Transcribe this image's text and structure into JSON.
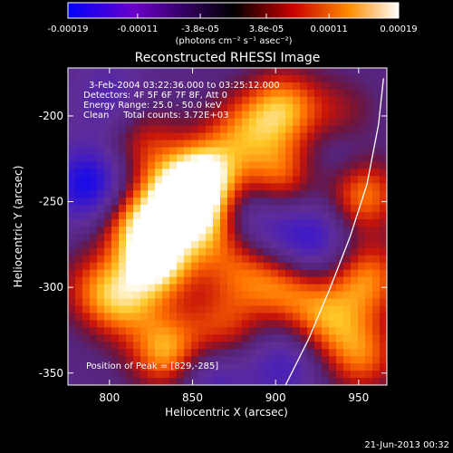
{
  "colorbar": {
    "tick_labels": [
      "-0.00019",
      "-0.00011",
      "-3.8e-05",
      "3.8e-05",
      "0.00011",
      "0.00019"
    ],
    "tick_values": [
      -0.00019,
      -0.00011,
      -3.8e-05,
      3.8e-05,
      0.00011,
      0.00019
    ],
    "range": [
      -0.00019,
      0.00019
    ],
    "unit_label": "(photons cm⁻² s⁻¹ asec⁻²)",
    "colors": [
      "#0000ff",
      "#6a00c8",
      "#000000",
      "#c80000",
      "#ff8c00",
      "#ffffff"
    ]
  },
  "chart_data": {
    "type": "heatmap",
    "title": "Reconstructed RHESSI Image",
    "xlabel": "Heliocentric X (arcsec)",
    "ylabel": "Heliocentric Y (arcsec)",
    "xlim": [
      775,
      967
    ],
    "ylim": [
      -357,
      -172
    ],
    "xticks": [
      800,
      850,
      900,
      950
    ],
    "yticks": [
      -200,
      -250,
      -300,
      -350
    ],
    "annotations": [
      "3-Feb-2004 03:22:36.000 to 03:25:12.000",
      "Detectors: 4F 5F 6F 7F 8F, Att 0",
      "Energy Range: 25.0 - 50.0 keV",
      "Clean     Total counts: 3.72E+03"
    ],
    "peak_label": "Position of Peak = [829,-285]",
    "peak": [
      829,
      -285
    ],
    "blobs": [
      {
        "x": 829,
        "y": -285,
        "v": 1.0
      },
      {
        "x": 858,
        "y": -235,
        "v": 0.95
      },
      {
        "x": 840,
        "y": -248,
        "v": 0.85
      },
      {
        "x": 835,
        "y": -338,
        "v": 0.85
      },
      {
        "x": 905,
        "y": -195,
        "v": 0.75
      },
      {
        "x": 862,
        "y": -265,
        "v": 0.7
      },
      {
        "x": 815,
        "y": -262,
        "v": 0.7
      },
      {
        "x": 902,
        "y": -235,
        "v": 0.65
      },
      {
        "x": 808,
        "y": -310,
        "v": 0.6
      },
      {
        "x": 952,
        "y": -245,
        "v": 0.8
      },
      {
        "x": 956,
        "y": -295,
        "v": 0.7
      },
      {
        "x": 930,
        "y": -318,
        "v": 0.65
      },
      {
        "x": 952,
        "y": -340,
        "v": 0.65
      },
      {
        "x": 905,
        "y": -300,
        "v": 0.6
      },
      {
        "x": 868,
        "y": -325,
        "v": 0.55
      },
      {
        "x": 880,
        "y": -208,
        "v": 0.55
      },
      {
        "x": 820,
        "y": -215,
        "v": 0.45
      },
      {
        "x": 790,
        "y": -300,
        "v": 0.45
      },
      {
        "x": 880,
        "y": -290,
        "v": 0.5
      },
      {
        "x": 940,
        "y": -200,
        "v": 0.35
      },
      {
        "x": 788,
        "y": -240,
        "v": -0.8
      },
      {
        "x": 883,
        "y": -260,
        "v": -0.55
      },
      {
        "x": 860,
        "y": -350,
        "v": -0.5
      },
      {
        "x": 905,
        "y": -345,
        "v": -0.45
      },
      {
        "x": 925,
        "y": -270,
        "v": -0.4
      },
      {
        "x": 800,
        "y": -190,
        "v": -0.35
      },
      {
        "x": 912,
        "y": -275,
        "v": -0.3
      },
      {
        "x": 940,
        "y": -225,
        "v": -0.3
      }
    ],
    "limb_arc": [
      [
        906,
        -357
      ],
      [
        920,
        -330
      ],
      [
        933,
        -300
      ],
      [
        945,
        -270
      ],
      [
        955,
        -240
      ],
      [
        962,
        -205
      ],
      [
        965,
        -178
      ]
    ]
  },
  "footer": {
    "timestamp": "21-Jun-2013 00:32"
  }
}
